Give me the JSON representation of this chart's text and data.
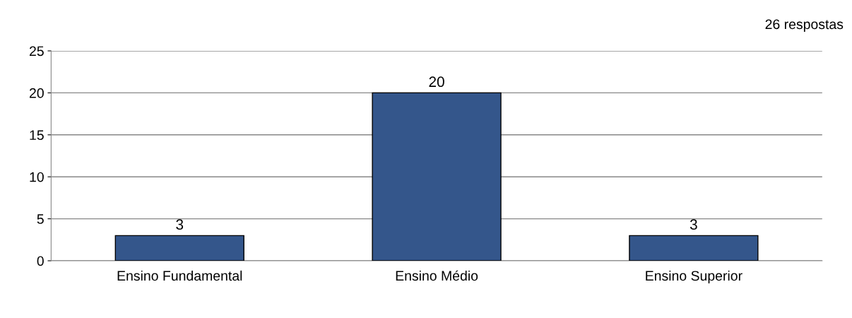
{
  "chart_data": {
    "type": "bar",
    "categories": [
      "Ensino Fundamental",
      "Ensino Médio",
      "Ensino Superior"
    ],
    "values": [
      3,
      20,
      3
    ],
    "color": "#34568b",
    "ylim": [
      0,
      25
    ],
    "yticks": [
      0,
      5,
      10,
      15,
      20,
      25
    ],
    "grid": "y",
    "data_labels": true,
    "annotations": [
      "26 respostas"
    ]
  }
}
